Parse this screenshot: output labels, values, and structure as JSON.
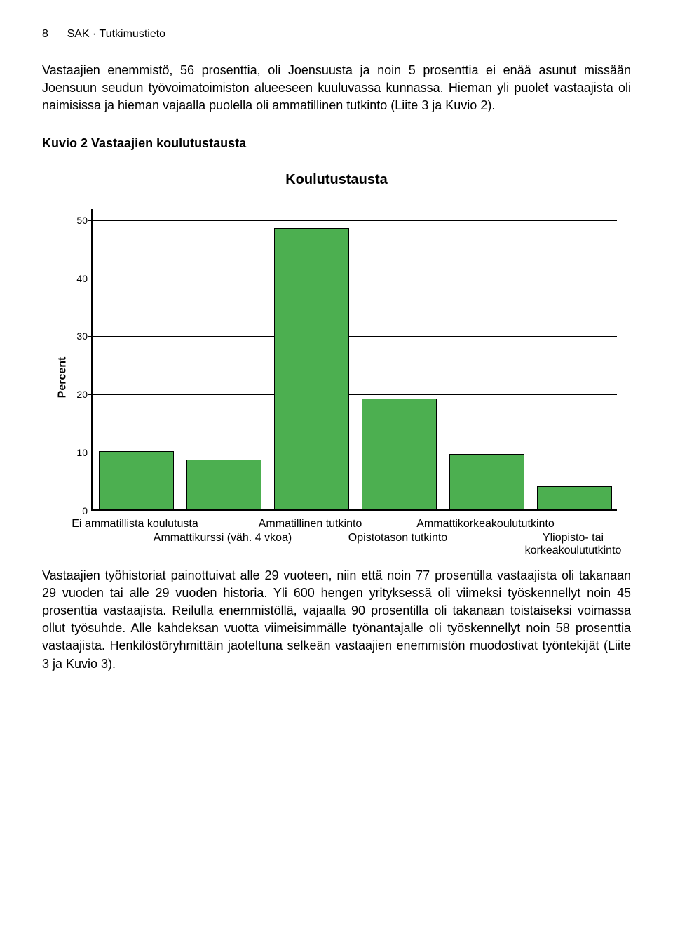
{
  "header": {
    "page_number": "8",
    "title": "SAK · Tutkimustieto"
  },
  "paragraphs": {
    "p1": "Vastaajien enemmistö, 56 prosenttia, oli Joensuusta ja noin 5 prosenttia ei enää asunut missään Joensuun seudun työvoimatoimiston alueeseen kuuluvassa kunnassa. Hieman yli puolet vastaajista oli naimisissa ja hieman vajaalla puolella oli ammatillinen tutkinto (Liite 3 ja Kuvio 2).",
    "p2": "Vastaajien työhistoriat painottuivat alle 29 vuoteen, niin että noin 77 prosentilla vastaajista oli takanaan 29 vuoden tai alle 29 vuoden historia. Yli 600 hengen yrityksessä oli viimeksi työskennellyt noin 45 prosenttia vastaajista. Reilulla enemmistöllä, vajaalla 90 prosentilla oli takanaan toistaiseksi voimassa ollut työsuhde. Alle kahdeksan vuotta viimeisimmälle työnantajalle oli työskennellyt noin 58 prosenttia vastaajista. Henkilöstöryhmittäin jaoteltuna selkeän vastaajien enemmistön muodostivat työntekijät (Liite 3 ja Kuvio 3)."
  },
  "chart": {
    "heading": "Kuvio 2 Vastaajien koulutustausta",
    "title": "Koulutustausta",
    "type": "bar",
    "y_axis_label": "Percent",
    "y_ticks": [
      0,
      10,
      20,
      30,
      40,
      50
    ],
    "y_max": 52,
    "bar_color": "#4caf50",
    "bar_border": "#000000",
    "categories": [
      {
        "label": "Ei ammatillista koulutusta",
        "value": 10,
        "row": 0
      },
      {
        "label": "Ammattikurssi (väh. 4 vkoa)",
        "value": 8.5,
        "row": 1
      },
      {
        "label": "Ammatillinen tutkinto",
        "value": 48.5,
        "row": 0
      },
      {
        "label": "Opistotason tutkinto",
        "value": 19,
        "row": 1
      },
      {
        "label": "Ammattikorkeakoulututkinto",
        "value": 9.5,
        "row": 0
      },
      {
        "label": "Yliopisto- tai korkeakoulututkinto",
        "value": 4,
        "row": 1
      }
    ]
  }
}
